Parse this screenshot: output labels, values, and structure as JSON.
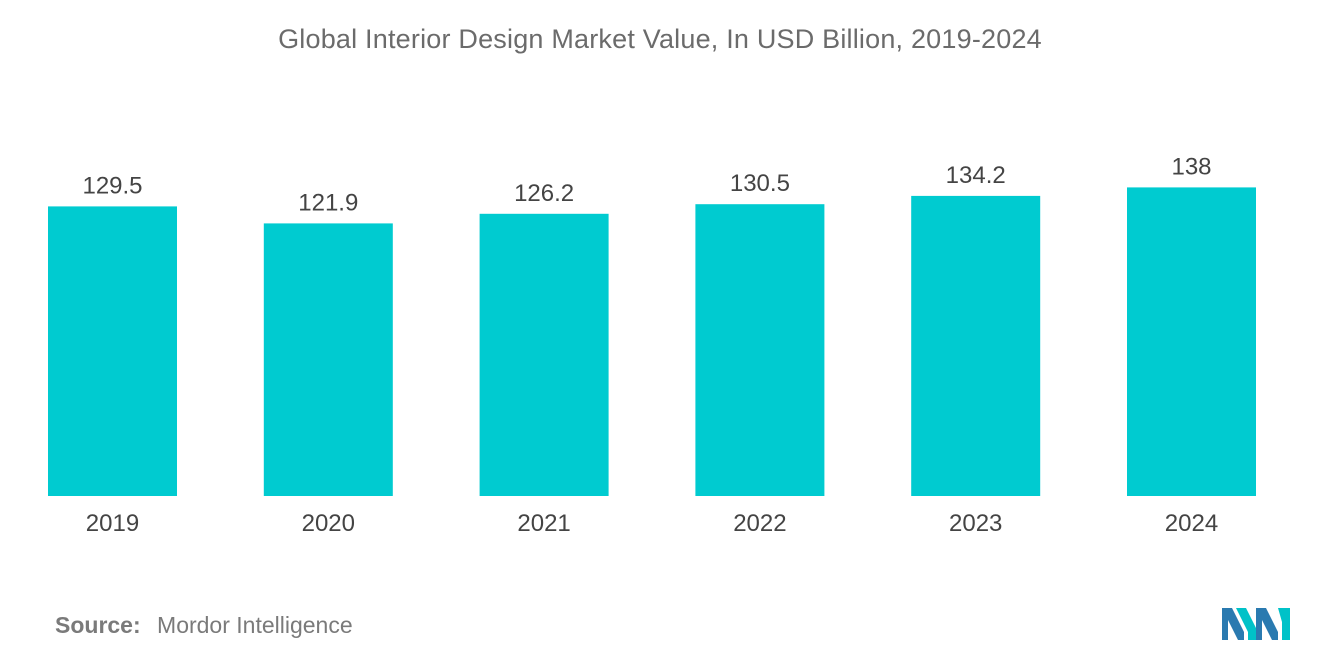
{
  "chart_data": {
    "type": "bar",
    "title": "Global Interior Design Market Value,  In USD Billion, 2019-2024",
    "categories": [
      "2019",
      "2020",
      "2021",
      "2022",
      "2023",
      "2024"
    ],
    "values": [
      129.5,
      121.9,
      126.2,
      130.5,
      134.2,
      138
    ],
    "value_labels": [
      "129.5",
      "121.9",
      "126.2",
      "130.5",
      "134.2",
      "138"
    ],
    "xlabel": "",
    "ylabel": "",
    "bar_color": "#00cbd0",
    "grid": false,
    "legend": "none"
  },
  "source": {
    "label": "Source:",
    "text": "Mordor Intelligence"
  },
  "colors": {
    "title": "#6b6b6b",
    "labels": "#444444",
    "logo_dark": "#2a7ab0",
    "logo_light": "#00c2c8"
  },
  "logo": {
    "icon": "mordor-intelligence-logo-icon"
  }
}
